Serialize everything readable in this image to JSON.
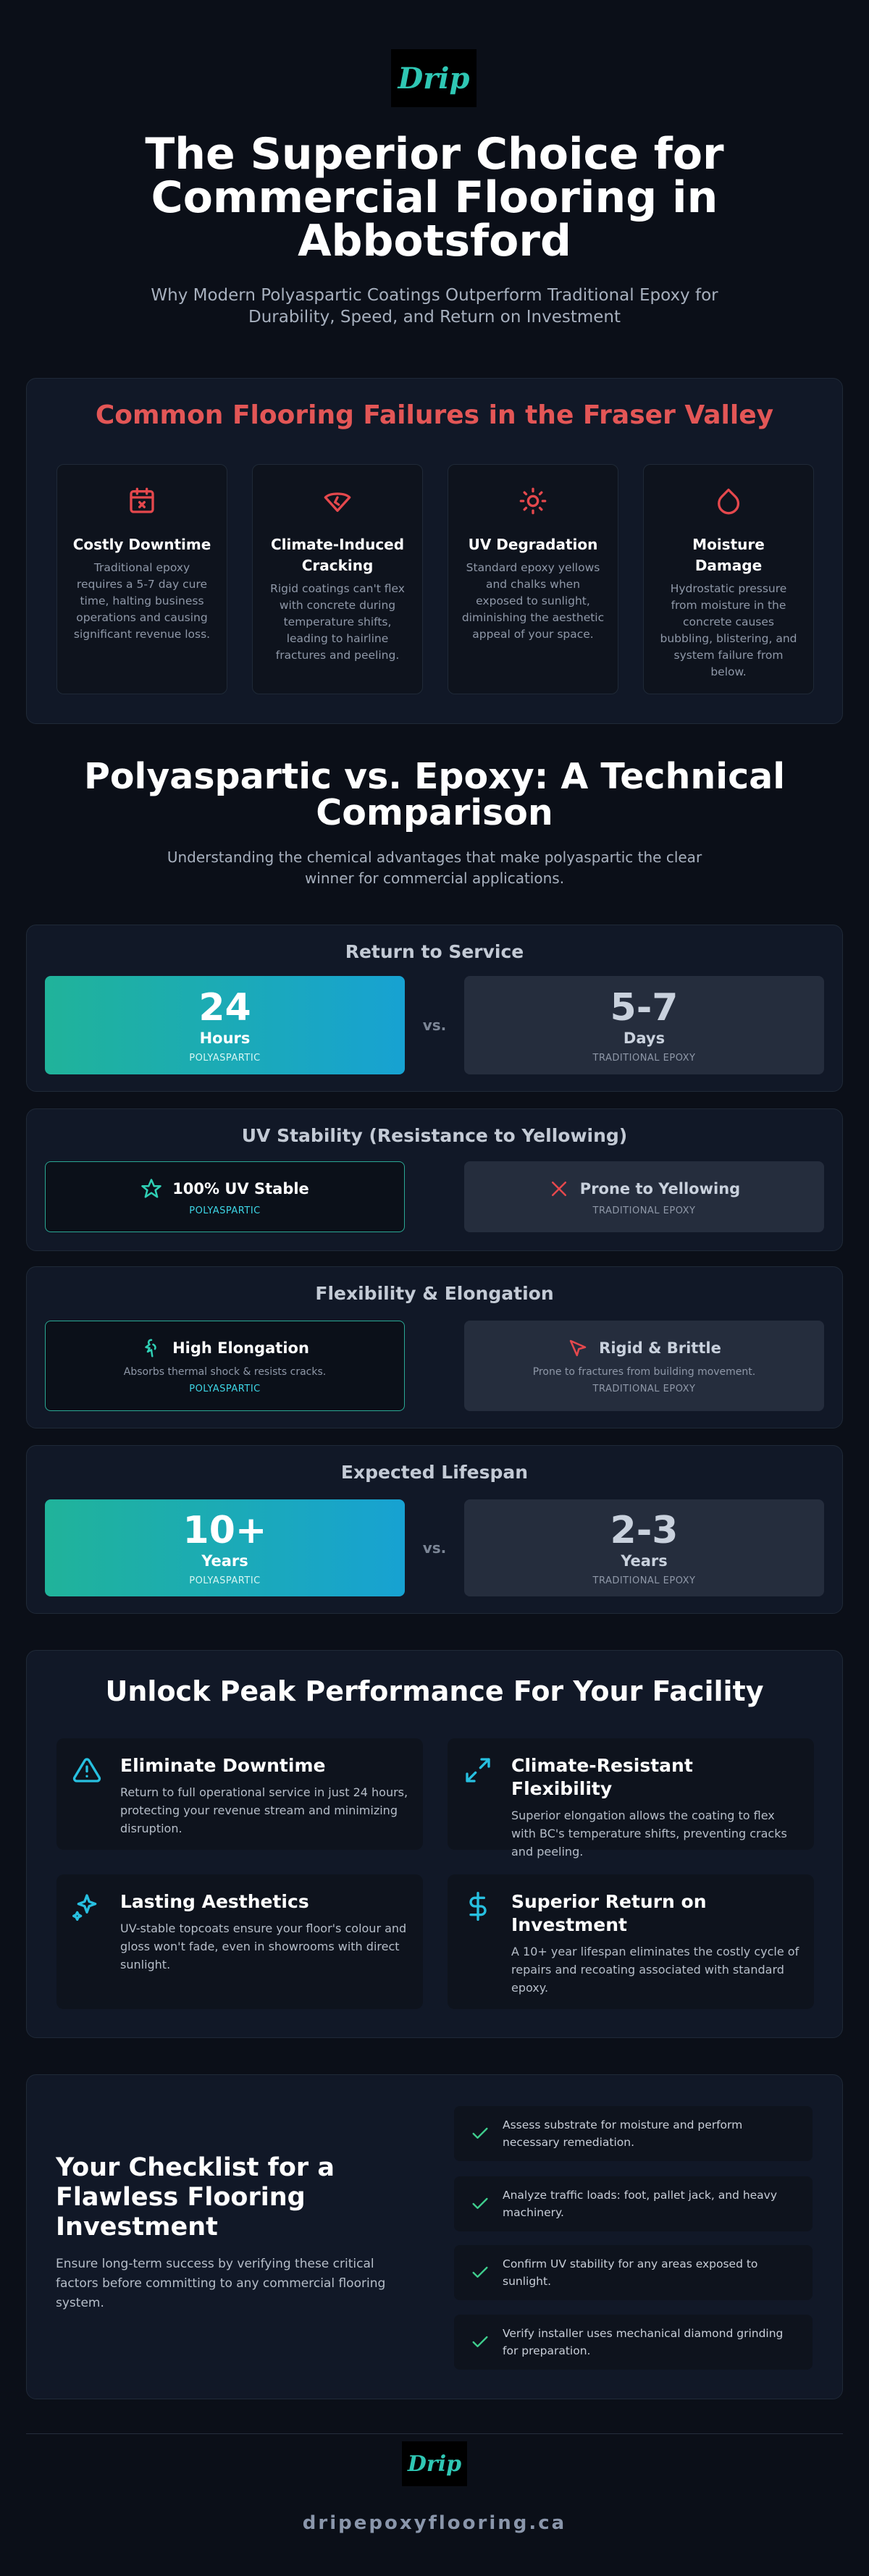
{
  "header": {
    "logo": "Drip",
    "title": "The Superior Choice for Commercial Flooring in Abbotsford",
    "subtitle": "Why Modern Polyaspartic Coatings Outperform Traditional Epoxy for Durability, Speed, and Return on Investment"
  },
  "failures": {
    "title": "Common Flooring Failures in the Fraser Valley",
    "cards": [
      {
        "title": "Costly Downtime",
        "text": "Traditional epoxy requires a 5-7 day cure time, halting business operations and causing significant revenue loss."
      },
      {
        "title": "Climate-Induced Cracking",
        "text": "Rigid coatings can't flex with concrete during temperature shifts, leading to hairline fractures and peeling."
      },
      {
        "title": "UV Degradation",
        "text": "Standard epoxy yellows and chalks when exposed to sunlight, diminishing the aesthetic appeal of your space."
      },
      {
        "title": "Moisture Damage",
        "text": "Hydrostatic pressure from moisture in the concrete causes bubbling, blistering, and system failure from below."
      }
    ]
  },
  "comparison": {
    "title": "Polyaspartic vs. Epoxy: A Technical Comparison",
    "subtitle": "Understanding the chemical advantages that make polyaspartic the clear winner for commercial applications.",
    "vs": "vs.",
    "panels": [
      {
        "title": "Return to Service",
        "left": {
          "value": "24",
          "unit": "Hours",
          "label": "POLYASPARTIC"
        },
        "right": {
          "value": "5-7",
          "unit": "Days",
          "label": "TRADITIONAL EPOXY"
        }
      },
      {
        "title": "UV Stability (Resistance to Yellowing)",
        "left": {
          "text": "100% UV Stable",
          "label": "POLYASPARTIC"
        },
        "right": {
          "text": "Prone to Yellowing",
          "label": "TRADITIONAL EPOXY"
        }
      },
      {
        "title": "Flexibility & Elongation",
        "left": {
          "text": "High Elongation",
          "note": "Absorbs thermal shock & resists cracks.",
          "label": "POLYASPARTIC"
        },
        "right": {
          "text": "Rigid & Brittle",
          "note": "Prone to fractures from building movement.",
          "label": "TRADITIONAL EPOXY"
        }
      },
      {
        "title": "Expected Lifespan",
        "left": {
          "value": "10+",
          "unit": "Years",
          "label": "POLYASPARTIC"
        },
        "right": {
          "value": "2-3",
          "unit": "Years",
          "label": "TRADITIONAL EPOXY"
        }
      }
    ]
  },
  "benefits": {
    "title": "Unlock Peak Performance For Your Facility",
    "items": [
      {
        "title": "Eliminate Downtime",
        "text": "Return to full operational service in just 24 hours, protecting your revenue stream and minimizing disruption."
      },
      {
        "title": "Climate-Resistant Flexibility",
        "text": "Superior elongation allows the coating to flex with BC's temperature shifts, preventing cracks and peeling."
      },
      {
        "title": "Lasting Aesthetics",
        "text": "UV-stable topcoats ensure your floor's colour and gloss won't fade, even in showrooms with direct sunlight."
      },
      {
        "title": "Superior Return on Investment",
        "text": "A 10+ year lifespan eliminates the costly cycle of repairs and recoating associated with standard epoxy."
      }
    ]
  },
  "checklist": {
    "title": "Your Checklist for a Flawless Flooring Investment",
    "text": "Ensure long-term success by verifying these critical factors before committing to any commercial flooring system.",
    "items": [
      "Assess substrate for moisture and perform necessary remediation.",
      "Analyze traffic loads: foot, pallet jack, and heavy machinery.",
      "Confirm UV stability for any areas exposed to sunlight.",
      "Verify installer uses mechanical diamond grinding for preparation."
    ]
  },
  "footer": {
    "logo": "Drip",
    "domain": "dripepoxyflooring.ca"
  }
}
